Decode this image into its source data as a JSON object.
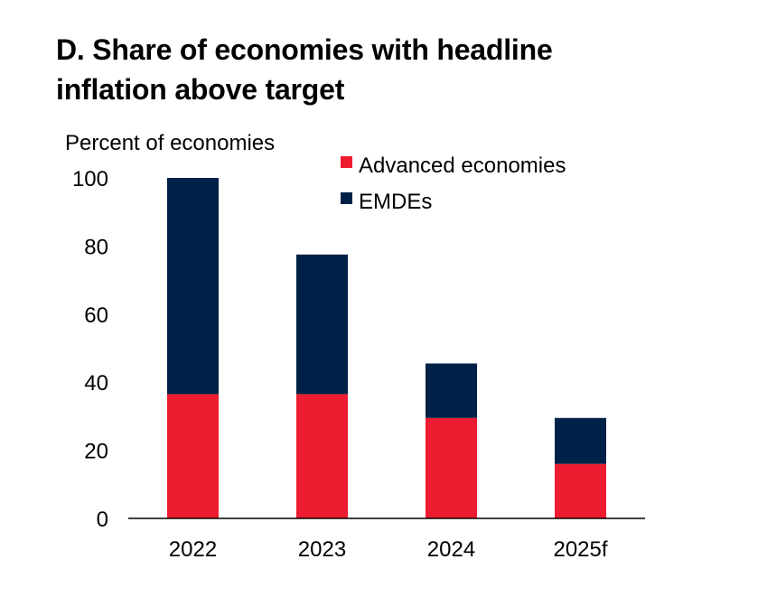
{
  "chart_data": {
    "type": "bar",
    "stacked": true,
    "title": "D. Share of economies with headline\ninflation above target",
    "ylabel": "Percent of economies",
    "xlabel": "",
    "categories": [
      "2022",
      "2023",
      "2024",
      "2025f"
    ],
    "series": [
      {
        "name": "Advanced economies",
        "color": "#EE1C31",
        "values": [
          36.5,
          36.5,
          29.5,
          16
        ]
      },
      {
        "name": "EMDEs",
        "color": "#002147",
        "values": [
          63.5,
          41,
          16,
          13.5
        ]
      }
    ],
    "ylim": [
      0,
      100
    ],
    "yticks": [
      "0",
      "20",
      "40",
      "60",
      "80",
      "100"
    ],
    "grid": false,
    "legend_position": "top-right"
  }
}
